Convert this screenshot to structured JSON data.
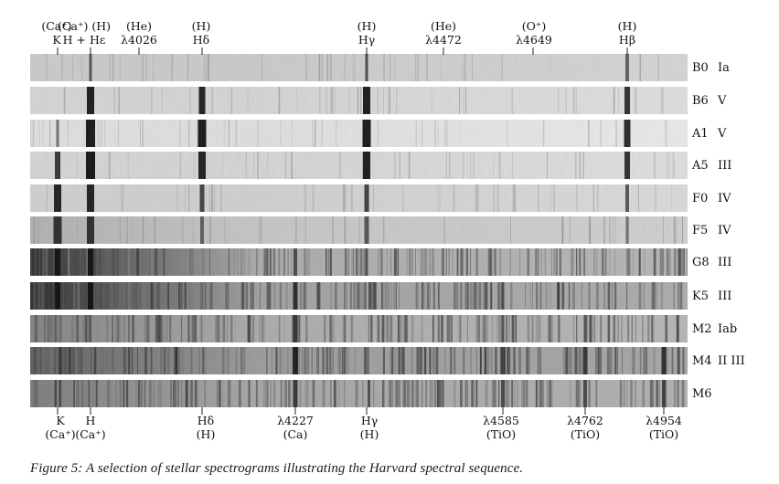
{
  "figure": {
    "caption": "Figure 5: A selection of stellar spectrograms illustrating the Harvard spectral sequence."
  },
  "top_labels": [
    {
      "id": "cak",
      "line1": "(Ca⁺)",
      "line2": "K"
    },
    {
      "id": "cah",
      "line1": "(Ca⁺) (H)",
      "line2": "H + Hε"
    },
    {
      "id": "he4026",
      "line1": "(He)",
      "line2": "λ4026"
    },
    {
      "id": "hdelta",
      "line1": "(H)",
      "line2": "Hδ"
    },
    {
      "id": "hgamma",
      "line1": "(H)",
      "line2": "Hγ"
    },
    {
      "id": "he4472",
      "line1": "(He)",
      "line2": "λ4472"
    },
    {
      "id": "o4649",
      "line1": "(O⁺)",
      "line2": "λ4649"
    },
    {
      "id": "hbeta",
      "line1": "(H)",
      "line2": "Hβ"
    }
  ],
  "bottom_labels": [
    {
      "id": "k",
      "line1": "K",
      "line2": "(Ca⁺)"
    },
    {
      "id": "h",
      "line1": "H",
      "line2": "(Ca⁺)"
    },
    {
      "id": "hdelta",
      "line1": "Hδ",
      "line2": "(H)"
    },
    {
      "id": "ca4227",
      "line1": "λ4227",
      "line2": "(Ca)"
    },
    {
      "id": "hgamma",
      "line1": "Hγ",
      "line2": "(H)"
    },
    {
      "id": "tio4585",
      "line1": "λ4585",
      "line2": "(TiO)"
    },
    {
      "id": "tio4762",
      "line1": "λ4762",
      "line2": "(TiO)"
    },
    {
      "id": "tio4954",
      "line1": "λ4954",
      "line2": "(TiO)"
    }
  ],
  "spectra": [
    {
      "type": "B0",
      "lum": "Ia"
    },
    {
      "type": "B6",
      "lum": "V"
    },
    {
      "type": "A1",
      "lum": "V"
    },
    {
      "type": "A5",
      "lum": "III"
    },
    {
      "type": "F0",
      "lum": "IV"
    },
    {
      "type": "F5",
      "lum": "IV"
    },
    {
      "type": "G8",
      "lum": "III"
    },
    {
      "type": "K5",
      "lum": "III"
    },
    {
      "type": "M2",
      "lum": "Iab"
    },
    {
      "type": "M4",
      "lum": "II III"
    },
    {
      "type": "M6",
      "lum": ""
    }
  ]
}
